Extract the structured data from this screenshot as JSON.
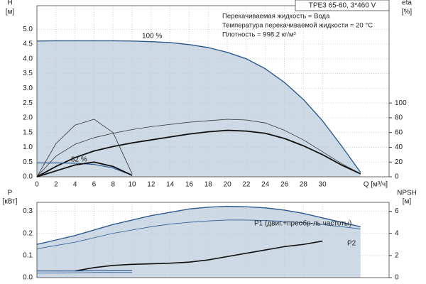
{
  "chart_data": [
    {
      "type": "line",
      "title": "TPE3 65-60, 3*460 V",
      "notes": [
        "Перекачиваемая жидкость = Вода",
        "Температура перекачиваемой жидкости = 20 °C",
        "Плотность = 998.2 кг/м³"
      ],
      "y_label": "H",
      "y_unit": "[м]",
      "y2_label": "eta",
      "y2_unit": "[%]",
      "x_label": "Q [м³/ч]",
      "annotations": [
        "100 %",
        "32 %"
      ],
      "x": [
        0,
        2,
        4,
        6,
        8,
        10,
        12,
        14,
        16,
        18,
        20,
        22,
        24,
        26,
        28,
        30,
        32,
        34
      ],
      "xlim": [
        0,
        37
      ],
      "xticks": [
        0,
        2,
        4,
        6,
        8,
        10,
        12,
        14,
        16,
        18,
        20,
        22,
        24,
        26,
        28,
        30
      ],
      "ylim": [
        0,
        5.8
      ],
      "yticks": [
        {
          "value": 0,
          "label": "0.0"
        },
        0.5,
        {
          "value": 1,
          "label": "1.0"
        },
        1.5,
        {
          "value": 2,
          "label": "2.0"
        },
        2.5,
        {
          "value": 3,
          "label": "3.0"
        },
        3.5,
        {
          "value": 4,
          "label": "4.0"
        },
        4.5,
        {
          "value": 5,
          "label": "5.0"
        }
      ],
      "y2lim": [
        0,
        232
      ],
      "y2ticks": [
        0,
        20,
        40,
        60,
        80,
        100
      ],
      "grid": true,
      "series": [
        {
          "color": "#2e5a8f",
          "fill": "#cdd9e5",
          "width": 1.4,
          "values": [
            4.6,
            4.61,
            4.61,
            4.61,
            4.61,
            4.6,
            4.58,
            4.55,
            4.48,
            4.38,
            4.22,
            4.0,
            3.66,
            3.2,
            2.62,
            1.9,
            1.05,
            0.15
          ]
        },
        {
          "color": "#333333",
          "width": 0.8,
          "axis": "y2",
          "values": [
            0,
            28,
            44,
            53,
            59,
            64,
            68,
            71,
            74,
            76,
            78,
            77,
            73,
            63,
            50,
            34,
            18,
            4
          ]
        },
        {
          "color": "#111111",
          "width": 1.8,
          "axis": "y2",
          "values": [
            0,
            14,
            26,
            35,
            41,
            46,
            50,
            54,
            58,
            61,
            63,
            62,
            59,
            52,
            42,
            30,
            16,
            4
          ]
        },
        {
          "color": "#2e5a8f",
          "width": 1.2,
          "values": [
            0.47,
            0.47,
            0.46,
            0.42,
            0.3,
            0.05,
            null,
            null,
            null,
            null,
            null,
            null,
            null,
            null,
            null,
            null,
            null,
            null
          ]
        },
        {
          "color": "#333333",
          "width": 0.8,
          "axis": "y2",
          "values": [
            0,
            45,
            70,
            78,
            60,
            4,
            null,
            null,
            null,
            null,
            null,
            null,
            null,
            null,
            null,
            null,
            null,
            null
          ]
        },
        {
          "color": "#111111",
          "width": 1.8,
          "axis": "y2",
          "values": [
            0,
            8,
            16,
            20,
            14,
            2,
            null,
            null,
            null,
            null,
            null,
            null,
            null,
            null,
            null,
            null,
            null,
            null
          ]
        }
      ]
    },
    {
      "type": "line",
      "y_label": "P",
      "y_unit": "[кВт]",
      "y2_label": "NPSH",
      "y2_unit": "[м]",
      "annotations": [
        "P1 (двиг.+преобр-ль частоты)",
        "P2"
      ],
      "x": [
        0,
        2,
        4,
        6,
        8,
        10,
        12,
        14,
        16,
        18,
        20,
        22,
        24,
        26,
        28,
        30,
        32,
        34
      ],
      "xlim": [
        0,
        37
      ],
      "xticks": [
        0,
        2,
        4,
        6,
        8,
        10,
        12,
        14,
        16,
        18,
        20,
        22,
        24,
        26,
        28,
        30
      ],
      "ylim": [
        0,
        0.34
      ],
      "yticks": [
        {
          "value": 0,
          "label": "0.0"
        },
        0.1,
        0.2,
        0.3
      ],
      "y2lim": [
        0,
        6.8
      ],
      "y2ticks": [
        0,
        2,
        4,
        6
      ],
      "grid": true,
      "series": [
        {
          "color": "#2e5a8f",
          "fill": "#cdd9e5",
          "width": 1.4,
          "values": [
            0.15,
            0.17,
            0.19,
            0.215,
            0.24,
            0.26,
            0.28,
            0.295,
            0.31,
            0.318,
            0.322,
            0.32,
            0.315,
            0.305,
            0.29,
            0.27,
            0.25,
            0.23
          ]
        },
        {
          "color": "#2e5a8f",
          "width": 0.8,
          "values": [
            0.13,
            0.145,
            0.16,
            0.18,
            0.2,
            0.215,
            0.23,
            0.242,
            0.25,
            0.256,
            0.26,
            0.26,
            0.258,
            0.254,
            0.248,
            0.24,
            0.23,
            0.22
          ]
        },
        {
          "color": "#111111",
          "width": 1.6,
          "axis": "y2",
          "values": [
            null,
            null,
            0.6,
            0.9,
            1.1,
            1.2,
            1.25,
            1.3,
            1.4,
            1.6,
            1.9,
            2.2,
            2.5,
            2.8,
            3.0,
            3.3,
            null,
            null
          ]
        },
        {
          "color": "#2e5a8f",
          "width": 1.2,
          "values": [
            0.03,
            0.03,
            0.03,
            0.031,
            0.032,
            0.032,
            null,
            null,
            null,
            null,
            null,
            null,
            null,
            null,
            null,
            null,
            null,
            null
          ]
        },
        {
          "color": "#2e5a8f",
          "width": 0.8,
          "values": [
            0.02,
            0.021,
            0.022,
            0.023,
            0.023,
            0.023,
            null,
            null,
            null,
            null,
            null,
            null,
            null,
            null,
            null,
            null,
            null,
            null
          ]
        }
      ]
    }
  ]
}
